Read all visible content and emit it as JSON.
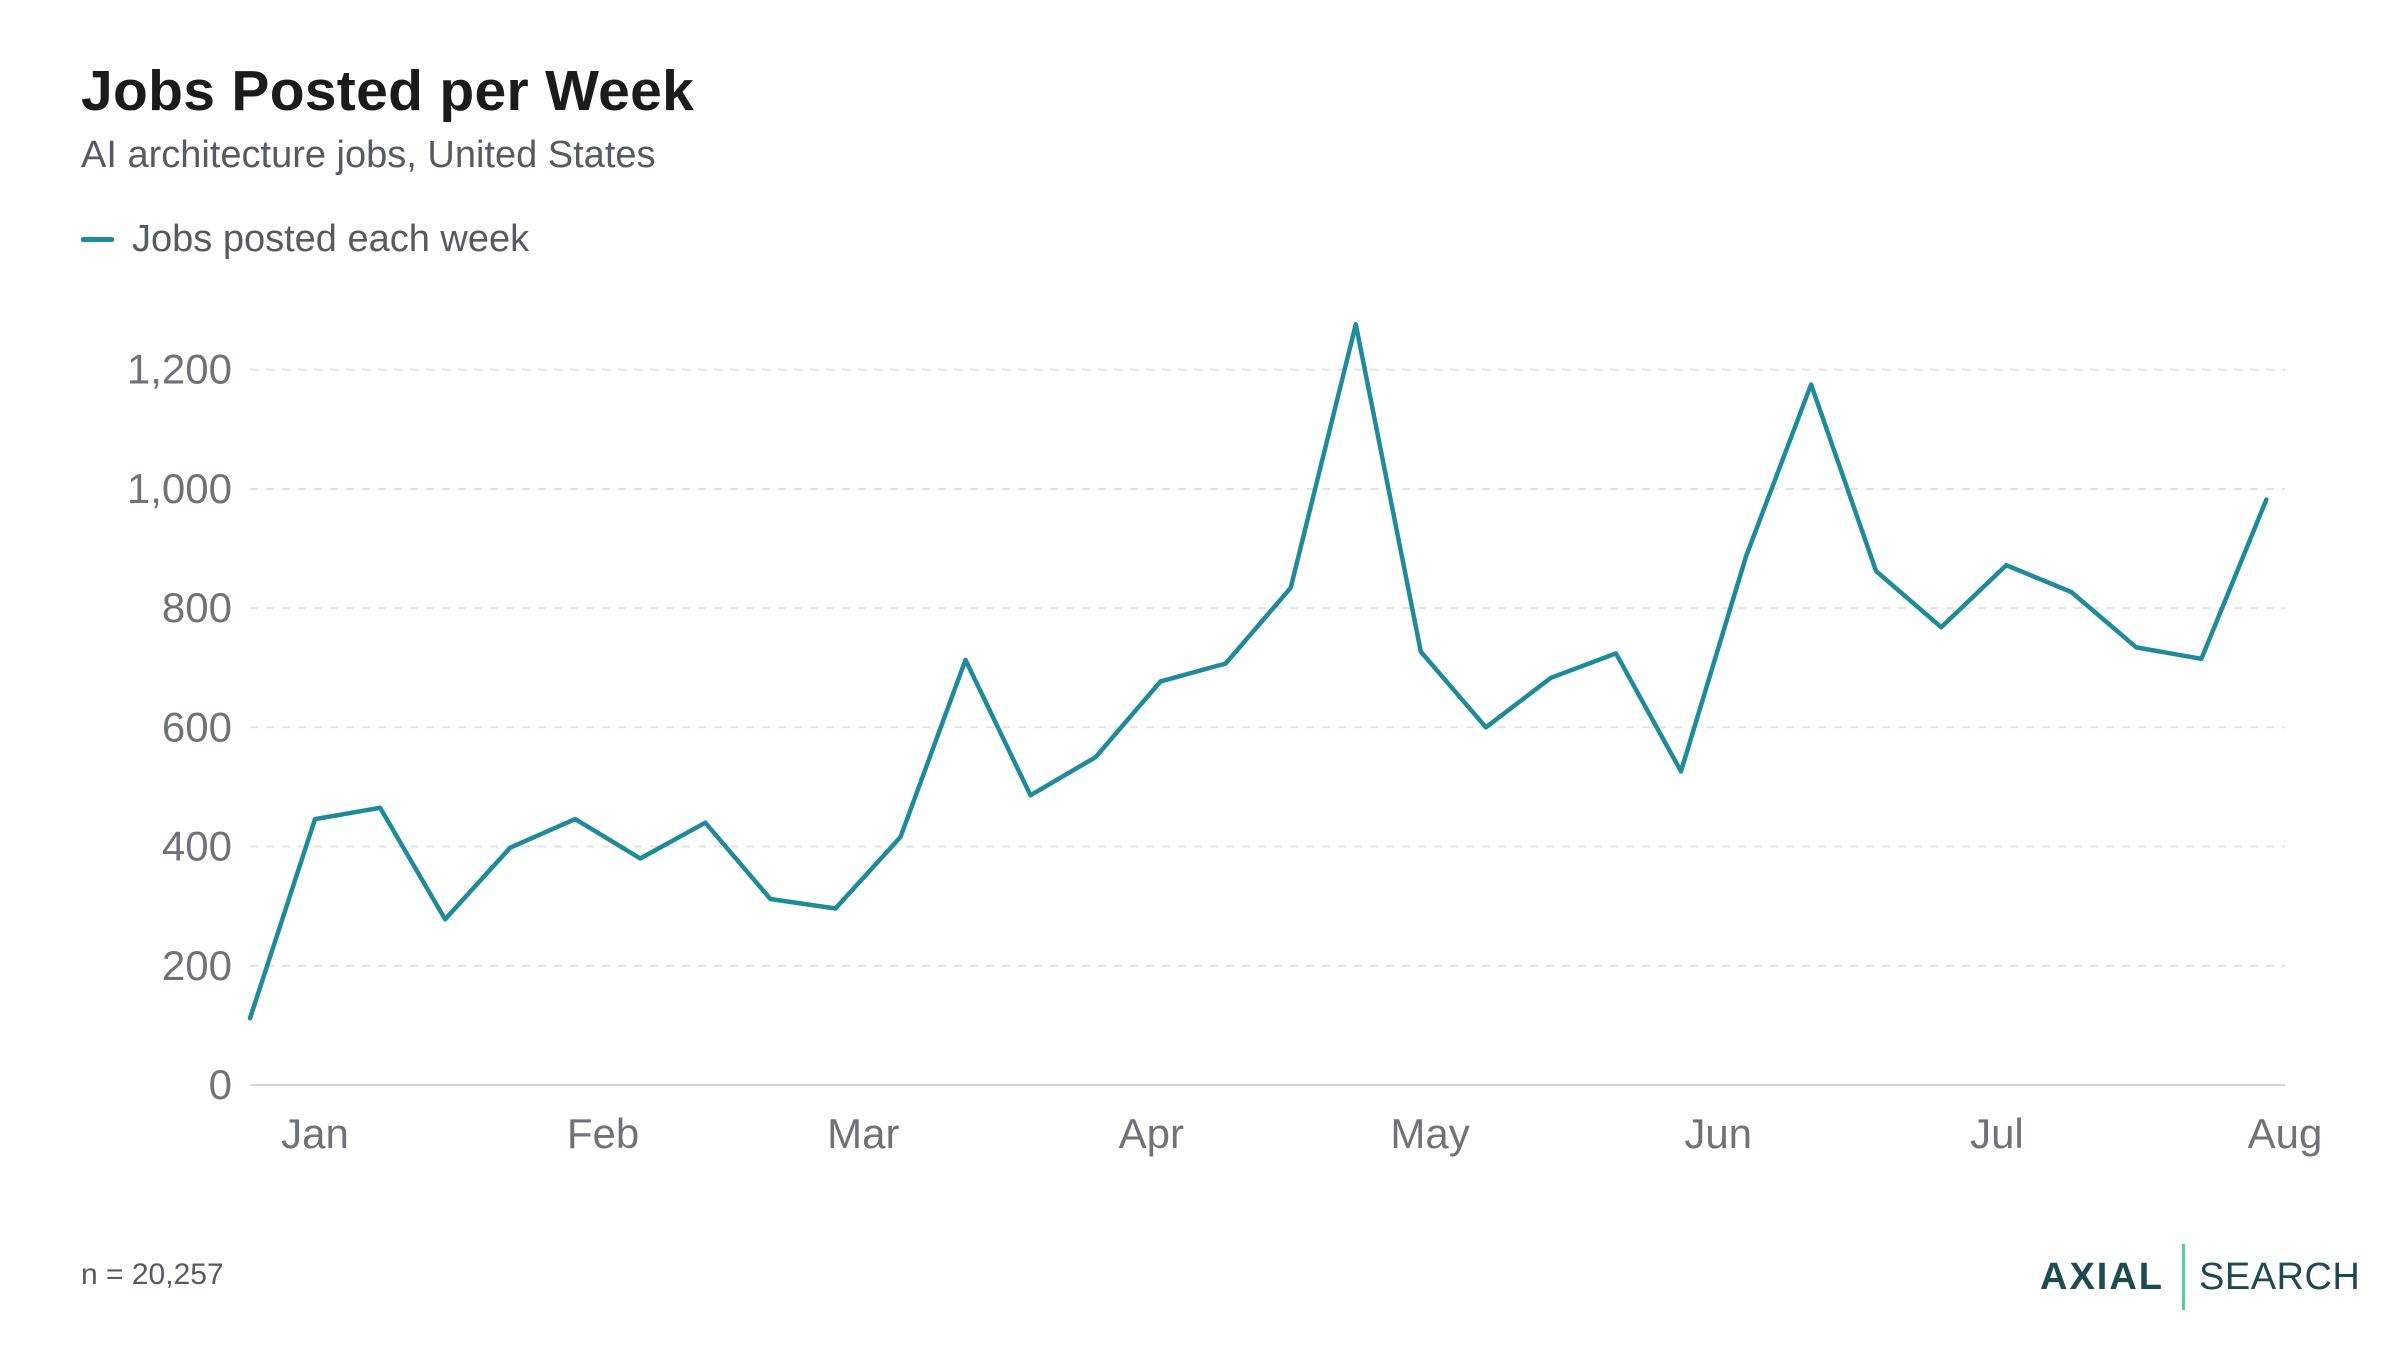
{
  "header": {
    "title": "Jobs Posted per Week",
    "subtitle": "AI architecture jobs, United States"
  },
  "legend": {
    "label": "Jobs posted each week"
  },
  "colors": {
    "line": "#1f8a99",
    "grid": "#e3e3e3",
    "axis": "#d6d6d6",
    "logo_divider": "#58c9a6"
  },
  "footer": {
    "note": "n = 20,257",
    "logo_word_1": "AXIAL",
    "logo_word_2": "SEARCH"
  },
  "chart_data": {
    "type": "line",
    "title": "Jobs Posted per Week",
    "subtitle": "AI architecture jobs, United States",
    "xlabel": "",
    "ylabel": "",
    "ylim": [
      0,
      1300
    ],
    "yticks": [
      0,
      200,
      400,
      600,
      800,
      1000,
      1200
    ],
    "ytick_labels": [
      "0",
      "200",
      "400",
      "600",
      "800",
      "1,000",
      "1,200"
    ],
    "grid": true,
    "legend_position": "top-left",
    "x_axis": {
      "type": "date",
      "start": "2025-01-01",
      "end": "2025-08-01",
      "tick_dates": [
        "2025-01-01",
        "2025-02-01",
        "2025-03-01",
        "2025-04-01",
        "2025-05-01",
        "2025-06-01",
        "2025-07-01",
        "2025-08-01"
      ],
      "tick_labels": [
        "Jan",
        "Feb",
        "Mar",
        "Apr",
        "May",
        "Jun",
        "Jul",
        "Aug"
      ]
    },
    "series": [
      {
        "name": "Jobs posted each week",
        "color": "#1f8a99",
        "x": [
          "2024-12-25",
          "2025-01-01",
          "2025-01-08",
          "2025-01-15",
          "2025-01-22",
          "2025-01-29",
          "2025-02-05",
          "2025-02-12",
          "2025-02-19",
          "2025-02-26",
          "2025-03-05",
          "2025-03-12",
          "2025-03-19",
          "2025-03-26",
          "2025-04-02",
          "2025-04-09",
          "2025-04-16",
          "2025-04-23",
          "2025-04-30",
          "2025-05-07",
          "2025-05-14",
          "2025-05-21",
          "2025-05-28",
          "2025-06-04",
          "2025-06-11",
          "2025-06-18",
          "2025-06-25",
          "2025-07-02",
          "2025-07-09",
          "2025-07-16",
          "2025-07-23",
          "2025-07-30"
        ],
        "y": [
          112,
          446,
          465,
          278,
          398,
          446,
          380,
          440,
          312,
          296,
          416,
          713,
          486,
          550,
          677,
          707,
          834,
          1276,
          727,
          600,
          683,
          724,
          526,
          887,
          1175,
          862,
          768,
          872,
          827,
          734,
          715,
          982
        ]
      }
    ]
  }
}
